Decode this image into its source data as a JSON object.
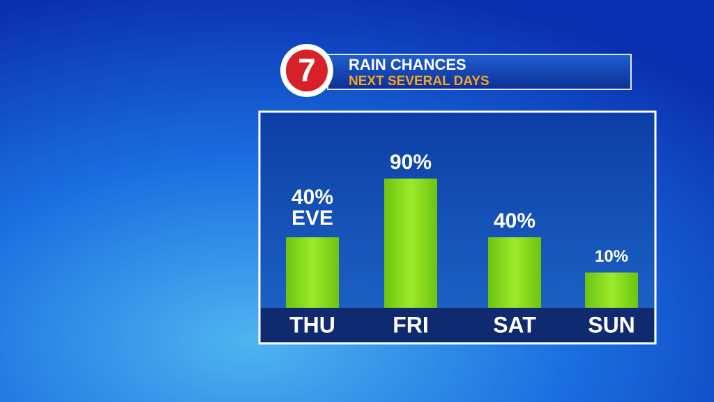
{
  "chart_data": {
    "type": "bar",
    "logo": "7",
    "title": "RAIN CHANCES",
    "subtitle": "NEXT SEVERAL DAYS",
    "categories": [
      "THU",
      "FRI",
      "SAT",
      "SUN"
    ],
    "values": [
      40,
      90,
      40,
      10
    ],
    "value_labels": [
      "40%",
      "90%",
      "40%",
      "10%"
    ],
    "annotations": [
      "EVE"
    ],
    "color": "#84d81c",
    "ylim": [
      -20,
      100
    ]
  }
}
